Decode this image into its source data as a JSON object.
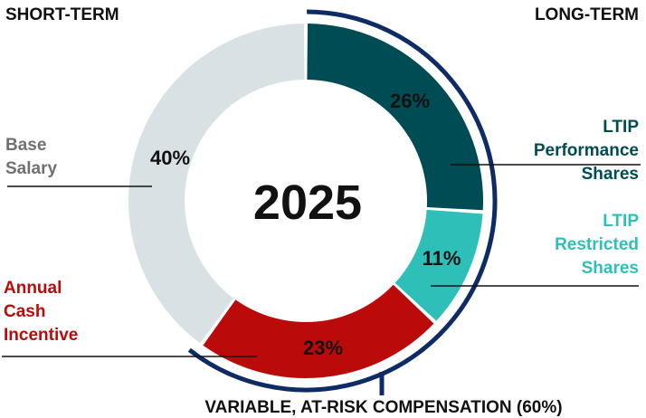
{
  "chart_data": {
    "type": "pie",
    "center_label": "2025",
    "group_labels": {
      "left": "SHORT-TERM",
      "right": "LONG-TERM"
    },
    "bracket_label": "VARIABLE, AT-RISK COMPENSATION (60%)",
    "slices": [
      {
        "name_lines": [
          "LTIP",
          "Performance",
          "Shares"
        ],
        "value": 26,
        "pct_label": "26%",
        "color": "#004c54"
      },
      {
        "name_lines": [
          "LTIP",
          "Restricted",
          "Shares"
        ],
        "value": 11,
        "pct_label": "11%",
        "color": "#2ebfb9"
      },
      {
        "name_lines": [
          "Annual",
          "Cash",
          "Incentive"
        ],
        "value": 23,
        "pct_label": "23%",
        "color": "#bb0a0a"
      },
      {
        "name_lines": [
          "Base",
          "Salary"
        ],
        "value": 40,
        "pct_label": "40%",
        "color": "#d8e2e5"
      }
    ],
    "label_colors": [
      "#004c54",
      "#2ebfb9",
      "#bb0a0a",
      "#707070"
    ],
    "bracket_color": "#0e2b66"
  }
}
